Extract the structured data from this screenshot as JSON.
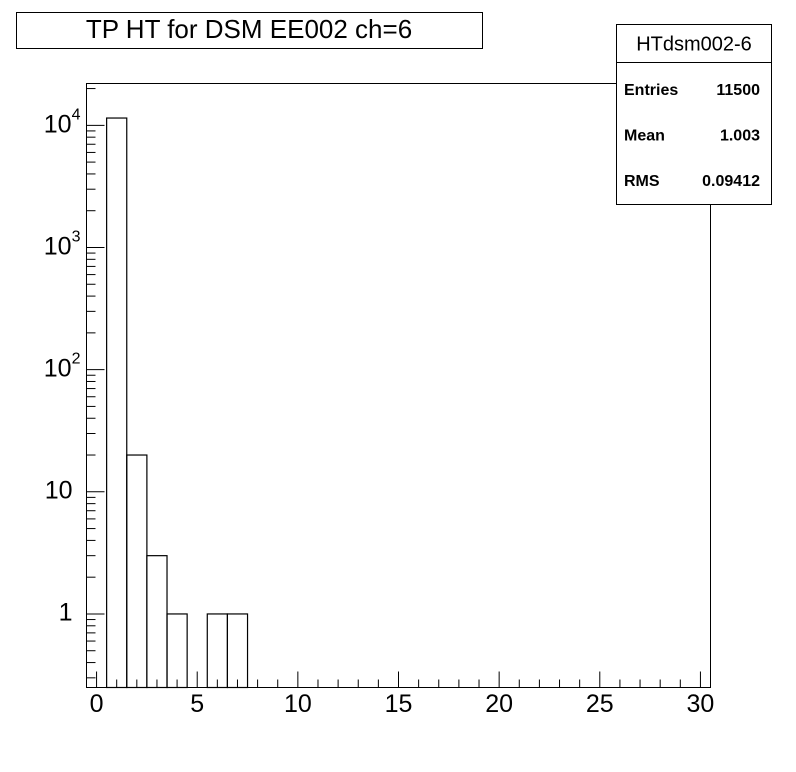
{
  "chart_data": {
    "type": "histogram",
    "title": "TP HT for DSM EE002 ch=6",
    "bins": [
      -0.5,
      0.5,
      1.5,
      2.5,
      3.5,
      4.5,
      5.5,
      6.5,
      7.5,
      8.5,
      9.5,
      10.5,
      11.5,
      12.5,
      13.5,
      14.5,
      15.5,
      16.5,
      17.5,
      18.5,
      19.5,
      20.5,
      21.5,
      22.5,
      23.5,
      24.5,
      25.5,
      26.5,
      27.5,
      28.5,
      29.5,
      30.5
    ],
    "values": [
      0,
      11474,
      20,
      3,
      1,
      0,
      1,
      1,
      0,
      0,
      0,
      0,
      0,
      0,
      0,
      0,
      0,
      0,
      0,
      0,
      0,
      0,
      0,
      0,
      0,
      0,
      0,
      0,
      0,
      0,
      0
    ],
    "color": "#000000",
    "xlim": [
      -0.5,
      30.5
    ],
    "xticks": [
      0,
      5,
      10,
      15,
      20,
      25,
      30
    ],
    "ylim": [
      0.25,
      22000
    ],
    "log_y": true,
    "yticks": [
      1,
      10,
      {
        "value": 100,
        "label": "10^2"
      },
      {
        "value": 1000,
        "label": "10^3"
      },
      {
        "value": 10000,
        "label": "10^4"
      }
    ],
    "stats": {
      "name": "HTdsm002-6",
      "rows": [
        [
          "Entries",
          "11500"
        ],
        [
          "Mean",
          "1.003"
        ],
        [
          "RMS",
          "0.09412"
        ]
      ]
    }
  }
}
